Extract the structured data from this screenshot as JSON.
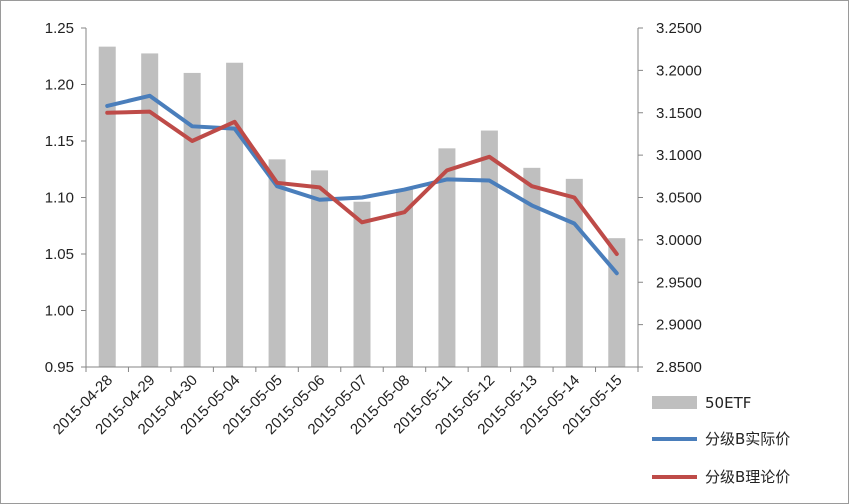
{
  "chart_data": {
    "type": "bar",
    "categories": [
      "2015-04-28",
      "2015-04-29",
      "2015-04-30",
      "2015-05-04",
      "2015-05-05",
      "2015-05-06",
      "2015-05-07",
      "2015-05-08",
      "2015-05-11",
      "2015-05-12",
      "2015-05-13",
      "2015-05-14",
      "2015-05-15"
    ],
    "left_axis": {
      "ylim": [
        0.95,
        1.25
      ],
      "ticks": [
        "0.95",
        "1.00",
        "1.05",
        "1.10",
        "1.15",
        "1.20",
        "1.25"
      ]
    },
    "right_axis": {
      "ylim": [
        2.85,
        3.25
      ],
      "ticks": [
        "2.8500",
        "2.9000",
        "2.9500",
        "3.0000",
        "3.0500",
        "3.1000",
        "3.1500",
        "3.2000",
        "3.2500"
      ]
    },
    "series": [
      {
        "name": "50ETF",
        "kind": "bar",
        "axis": "right",
        "color": "#bfbfbf",
        "values": [
          3.228,
          3.22,
          3.197,
          3.209,
          3.095,
          3.082,
          3.045,
          3.06,
          3.108,
          3.129,
          3.085,
          3.072,
          3.002
        ]
      },
      {
        "name": "分级B实际价",
        "kind": "line",
        "axis": "left",
        "color": "#4a7ebb",
        "values": [
          1.181,
          1.19,
          1.163,
          1.161,
          1.11,
          1.098,
          1.1,
          1.107,
          1.116,
          1.115,
          1.093,
          1.077,
          1.033
        ]
      },
      {
        "name": "分级B理论价",
        "kind": "line",
        "axis": "left",
        "color": "#be4b48",
        "values": [
          1.175,
          1.176,
          1.15,
          1.167,
          1.113,
          1.109,
          1.078,
          1.087,
          1.124,
          1.136,
          1.11,
          1.1,
          1.05
        ]
      }
    ],
    "legend": "bottom-right"
  }
}
